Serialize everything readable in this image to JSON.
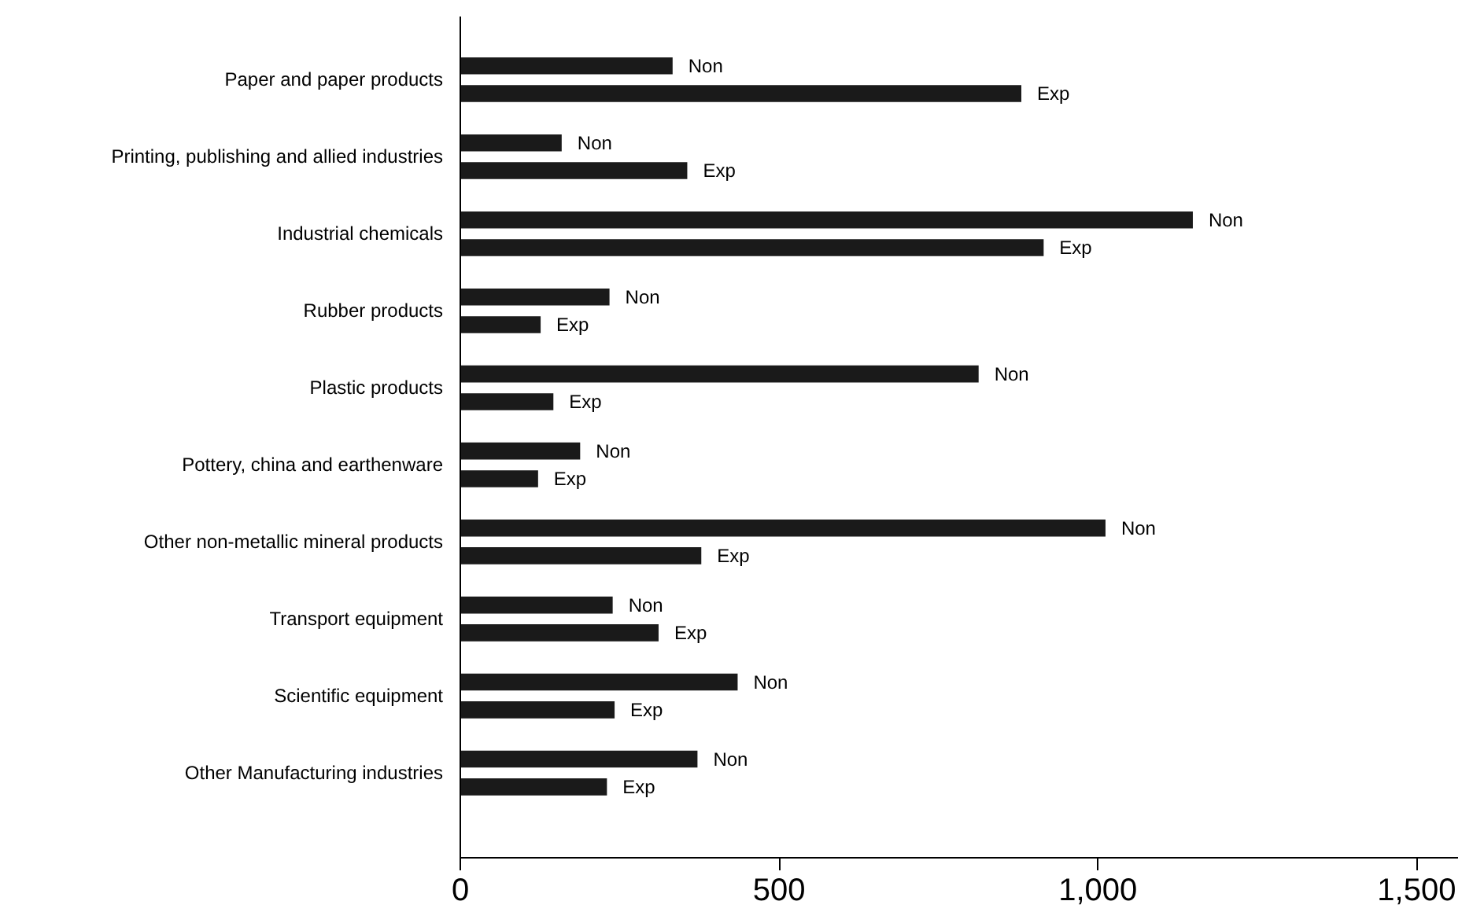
{
  "chart_data": {
    "type": "bar",
    "orientation": "horizontal",
    "grid": false,
    "categories": [
      "Paper and paper products",
      "Printing, publishing and allied industries",
      "Industrial chemicals",
      "Rubber products",
      "Plastic products",
      "Pottery, china and earthenware",
      "Other non-metallic mineral products",
      "Transport equipment",
      "Scientific equipment",
      "Other Manufacturing industries"
    ],
    "series": [
      {
        "name": "Non",
        "color": "#1a1a1a",
        "values": [
          333,
          159,
          1149,
          234,
          813,
          188,
          1012,
          239,
          435,
          372
        ]
      },
      {
        "name": "Exp",
        "color": "#1a1a1a",
        "values": [
          880,
          356,
          915,
          126,
          146,
          122,
          378,
          311,
          242,
          230
        ]
      }
    ],
    "xlim": [
      0,
      1565
    ],
    "xticks": [
      0,
      500,
      {
        "value": 1000,
        "label": "1,000"
      },
      {
        "value": 1500,
        "label": "1,500"
      }
    ]
  }
}
